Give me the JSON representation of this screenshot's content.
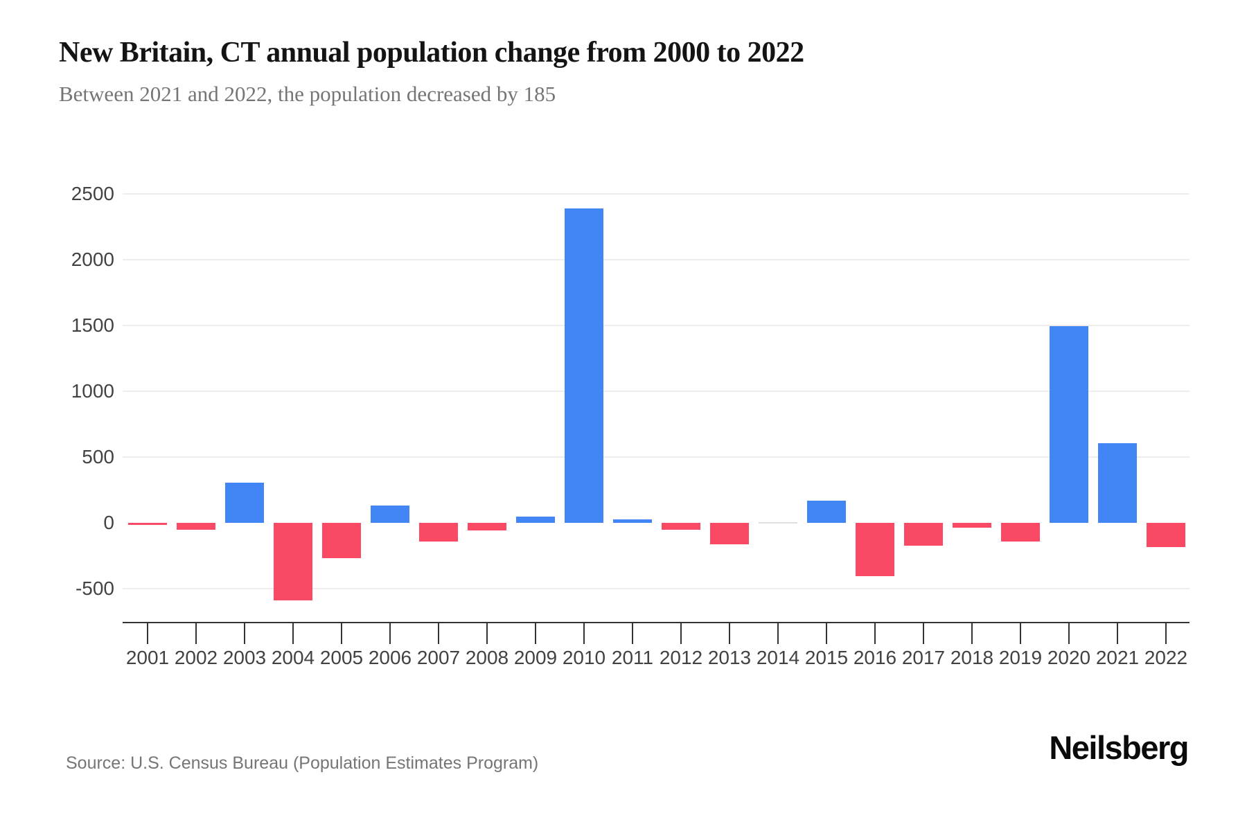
{
  "header": {
    "title": "New Britain, CT annual population change from 2000 to 2022",
    "subtitle": "Between 2021 and 2022, the population decreased by 185"
  },
  "footer": {
    "source": "Source: U.S. Census Bureau (Population Estimates Program)",
    "brand": "Neilsberg"
  },
  "chart_data": {
    "type": "bar",
    "title": "New Britain, CT annual population change from 2000 to 2022",
    "subtitle": "Between 2021 and 2022, the population decreased by 185",
    "xlabel": "",
    "ylabel": "",
    "categories": [
      "2001",
      "2002",
      "2003",
      "2004",
      "2005",
      "2006",
      "2007",
      "2008",
      "2009",
      "2010",
      "2011",
      "2012",
      "2013",
      "2014",
      "2015",
      "2016",
      "2017",
      "2018",
      "2019",
      "2020",
      "2021",
      "2022"
    ],
    "values": [
      -10,
      -55,
      305,
      -590,
      -270,
      130,
      -140,
      -60,
      50,
      2390,
      25,
      -50,
      -165,
      0,
      170,
      -405,
      -175,
      -35,
      -140,
      1495,
      605,
      -185
    ],
    "yticks": [
      2500,
      2000,
      1500,
      1000,
      500,
      0,
      -500
    ],
    "ylim": [
      -750,
      2800
    ],
    "grid": true,
    "legend": "none",
    "colors": {
      "positive": "#4285f4",
      "negative": "#fa4964",
      "zero": "#e0e0e0",
      "gridline": "#ededed",
      "axis": "#333333",
      "tick_label": "#424242"
    }
  }
}
